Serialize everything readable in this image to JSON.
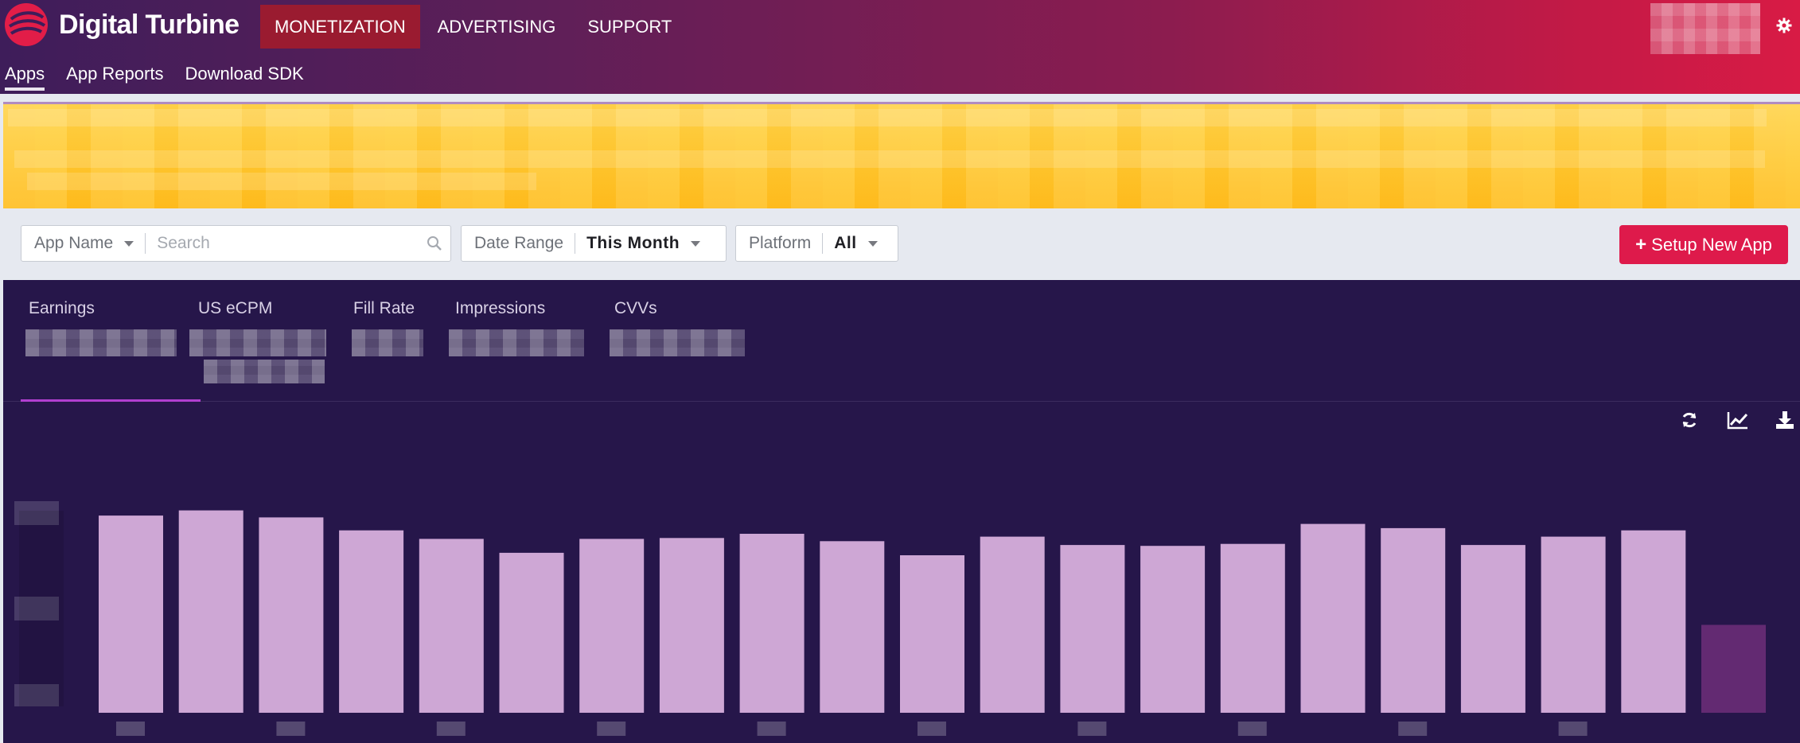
{
  "brand": {
    "name": "Digital Turbine"
  },
  "colors": {
    "accent": "#de1a4b",
    "bar": "#cea7d5",
    "bar_partial": "#632a72",
    "dashboard_bg": "#26164a"
  },
  "nav": {
    "items": [
      {
        "label": "MONETIZATION",
        "active": true
      },
      {
        "label": "ADVERTISING",
        "active": false
      },
      {
        "label": "SUPPORT",
        "active": false
      }
    ]
  },
  "subnav": {
    "items": [
      {
        "label": "Apps",
        "active": true
      },
      {
        "label": "App Reports",
        "active": false
      },
      {
        "label": "Download SDK",
        "active": false
      }
    ]
  },
  "icons": {
    "settings": "gear-icon",
    "search": "search-icon",
    "refresh": "refresh-icon",
    "trend": "line-chart-icon",
    "download": "download-icon"
  },
  "filters": {
    "app_name": {
      "label": "App Name",
      "placeholder": "Search"
    },
    "date_range": {
      "label": "Date Range",
      "value": "This Month"
    },
    "platform": {
      "label": "Platform",
      "value": "All"
    }
  },
  "setup_button": {
    "label": "Setup New App"
  },
  "metrics": [
    {
      "label": "Earnings"
    },
    {
      "label": "US eCPM"
    },
    {
      "label": "Fill Rate"
    },
    {
      "label": "Impressions"
    },
    {
      "label": "CVVs"
    }
  ],
  "chart_data": {
    "type": "bar",
    "title": "",
    "xlabel": "",
    "ylabel": "",
    "relative_scale": true,
    "values": [
      0.879,
      0.902,
      0.871,
      0.813,
      0.775,
      0.713,
      0.775,
      0.779,
      0.798,
      0.765,
      0.702,
      0.785,
      0.748,
      0.744,
      0.753,
      0.842,
      0.823,
      0.748,
      0.785,
      0.813,
      0.392
    ],
    "highlight_last": true
  }
}
